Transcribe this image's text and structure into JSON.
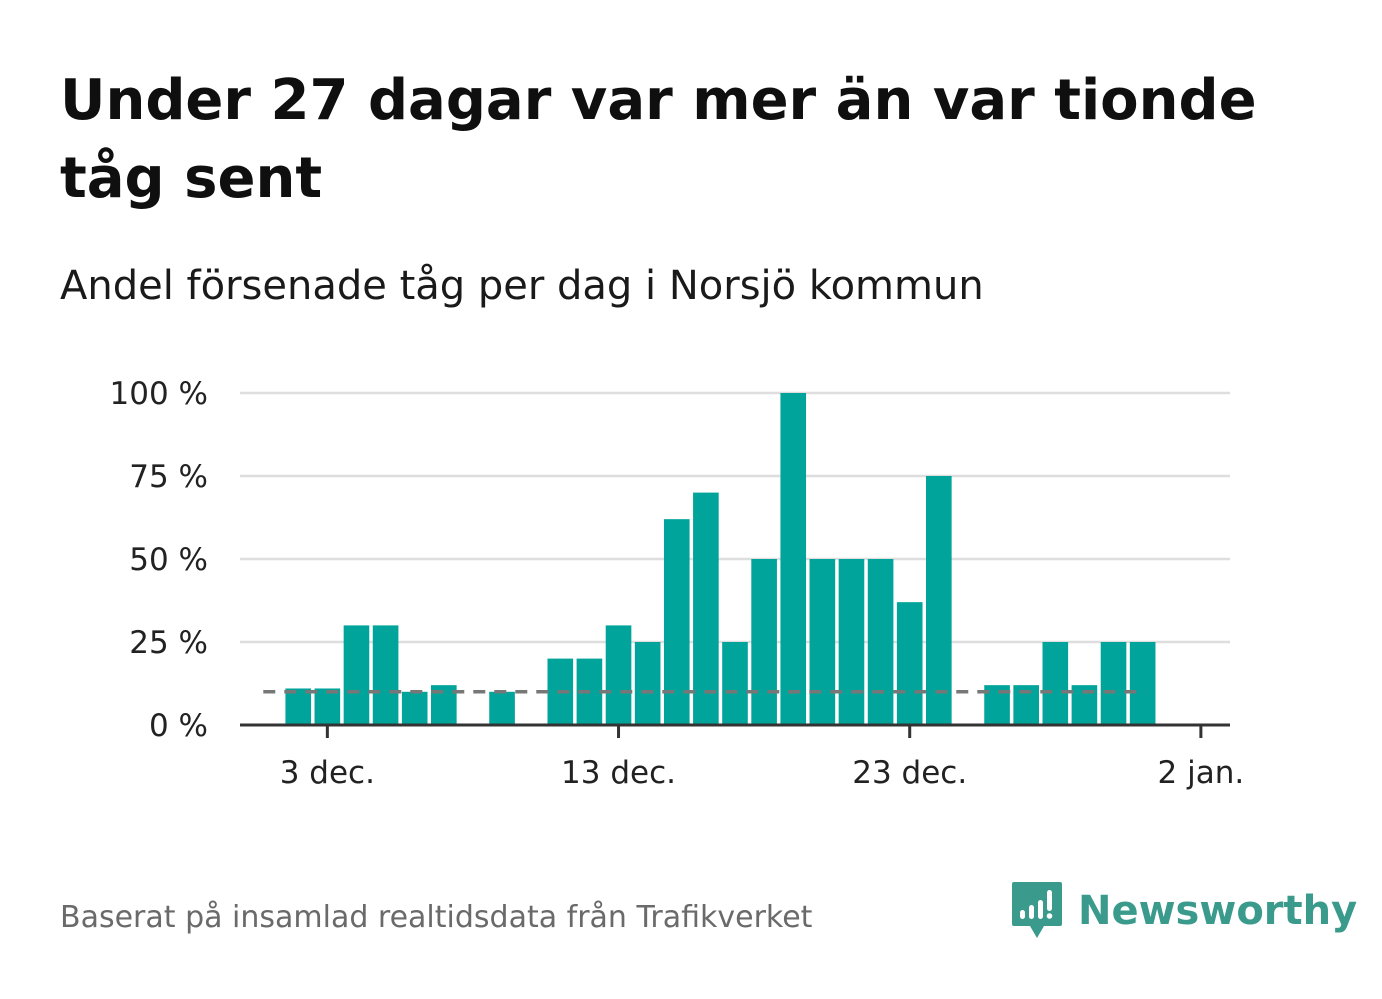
{
  "header": {
    "title": "Under 27 dagar var mer än var tionde tåg sent",
    "subtitle": "Andel försenade tåg per dag i Norsjö kommun"
  },
  "footer": {
    "source": "Baserat på insamlad realtidsdata från Trafikverket",
    "brand": "Newsworthy"
  },
  "colors": {
    "bar": "#00A49A",
    "grid": "#dedede",
    "axis": "#333333",
    "threshold": "#777777",
    "brand": "#3a9a8c"
  },
  "chart_data": {
    "type": "bar",
    "title": "Under 27 dagar var mer än var tionde tåg sent",
    "subtitle": "Andel försenade tåg per dag i Norsjö kommun",
    "xlabel": "",
    "ylabel": "",
    "x_start_day": 0,
    "x_end_day": 34,
    "x_start_date": "30 nov.",
    "values": [
      null,
      null,
      11,
      11,
      30,
      30,
      10,
      12,
      null,
      10,
      null,
      20,
      20,
      30,
      25,
      62,
      70,
      25,
      50,
      100,
      50,
      50,
      50,
      37,
      75,
      null,
      12,
      12,
      25,
      12,
      25,
      25
    ],
    "threshold": 10,
    "ylim": [
      0,
      100
    ],
    "yticks": [
      {
        "value": 0,
        "label": "0 %"
      },
      {
        "value": 25,
        "label": "25 %"
      },
      {
        "value": 50,
        "label": "50 %"
      },
      {
        "value": 75,
        "label": "75 %"
      },
      {
        "value": 100,
        "label": "100 %"
      }
    ],
    "xticks": [
      {
        "day": 3,
        "label": "3 dec."
      },
      {
        "day": 13,
        "label": "13 dec."
      },
      {
        "day": 23,
        "label": "23 dec."
      },
      {
        "day": 33,
        "label": "2 jan."
      }
    ],
    "grid": true,
    "legend": "none"
  }
}
